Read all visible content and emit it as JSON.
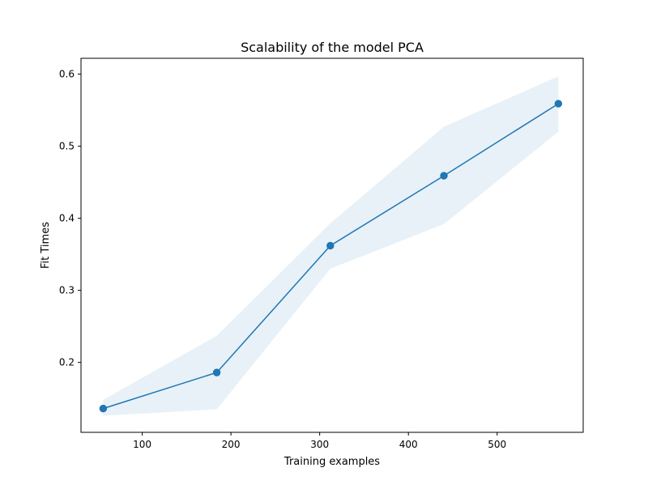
{
  "chart_data": {
    "type": "line",
    "title": "Scalability of the model PCA",
    "xlabel": "Training examples",
    "ylabel": "Fit Times",
    "xlim": [
      31,
      597
    ],
    "ylim": [
      0.103,
      0.622
    ],
    "x_ticks": [
      100,
      200,
      300,
      400,
      500
    ],
    "y_ticks": [
      0.2,
      0.3,
      0.4,
      0.5,
      0.6
    ],
    "x_tick_labels": [
      "100",
      "200",
      "300",
      "400",
      "500"
    ],
    "y_tick_labels": [
      "0.2",
      "0.3",
      "0.4",
      "0.5",
      "0.6"
    ],
    "grid": false,
    "series": [
      {
        "x": [
          56,
          184,
          312,
          440,
          569
        ],
        "y": [
          0.136,
          0.186,
          0.362,
          0.459,
          0.559
        ],
        "y_lower": [
          0.126,
          0.135,
          0.33,
          0.392,
          0.52
        ],
        "y_upper": [
          0.148,
          0.237,
          0.393,
          0.527,
          0.597
        ],
        "color": "#1f77b4",
        "band_color": "#1f77b4",
        "band_opacity": 0.1,
        "marker": "circle"
      }
    ]
  }
}
